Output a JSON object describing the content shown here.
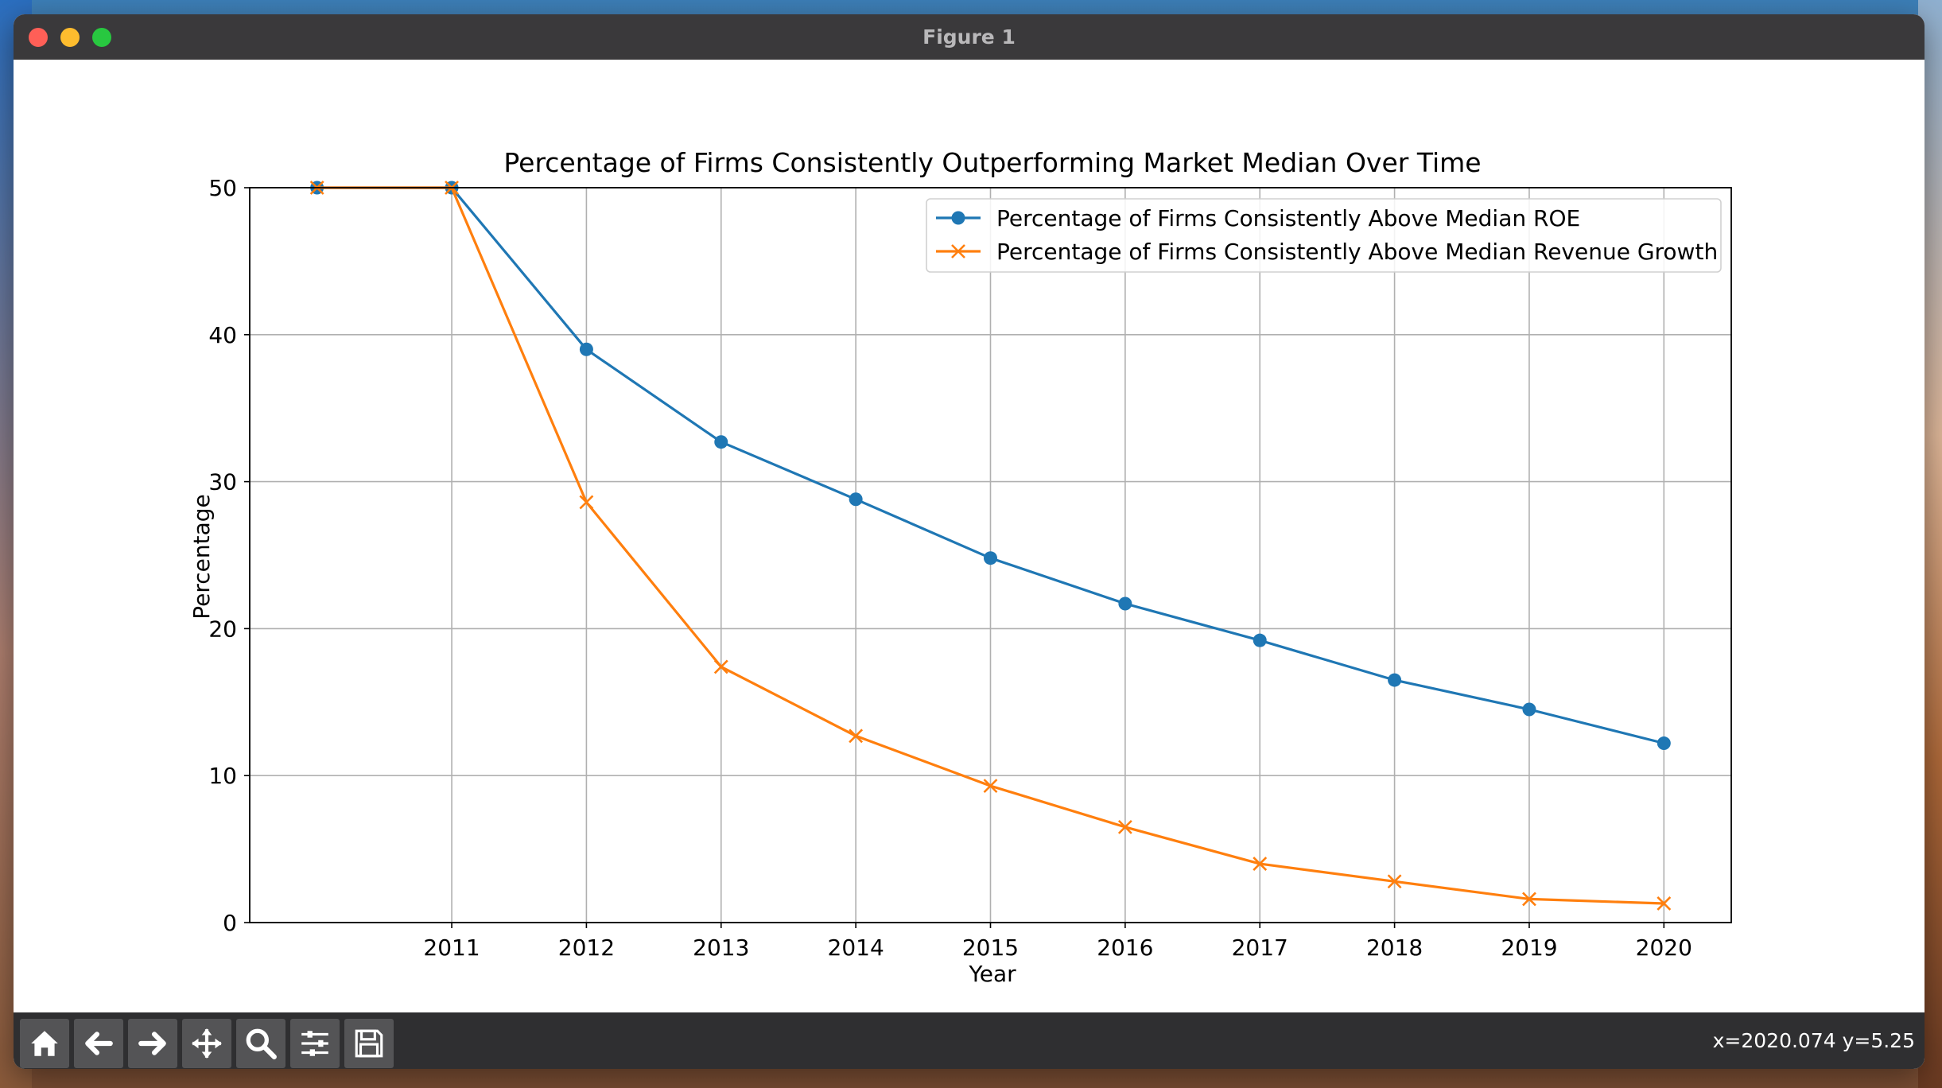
{
  "window": {
    "title": "Figure 1"
  },
  "chart_data": {
    "type": "line",
    "title": "Percentage of Firms Consistently Outperforming Market Median Over Time",
    "xlabel": "Year",
    "ylabel": "Percentage",
    "x": [
      2010,
      2011,
      2012,
      2013,
      2014,
      2015,
      2016,
      2017,
      2018,
      2019,
      2020
    ],
    "x_tick_labels": [
      "2011",
      "2012",
      "2013",
      "2014",
      "2015",
      "2016",
      "2017",
      "2018",
      "2019",
      "2020"
    ],
    "y_ticks": [
      0,
      10,
      20,
      30,
      40,
      50
    ],
    "xlim": [
      2009.5,
      2020.5
    ],
    "ylim": [
      0,
      50
    ],
    "grid": true,
    "legend_position": "top-right",
    "series": [
      {
        "name": "Percentage of Firms Consistently Above Median ROE",
        "color": "#1f77b4",
        "marker": "circle",
        "values": [
          50,
          50,
          39.0,
          32.7,
          28.8,
          24.8,
          21.7,
          19.2,
          16.5,
          14.5,
          12.2
        ]
      },
      {
        "name": "Percentage of Firms Consistently Above Median Revenue Growth",
        "color": "#ff7f0e",
        "marker": "x",
        "values": [
          50,
          50,
          28.6,
          17.4,
          12.7,
          9.3,
          6.5,
          4.0,
          2.8,
          1.6,
          1.3
        ]
      }
    ]
  },
  "toolbar": {
    "buttons": [
      {
        "name": "home",
        "icon": "home-icon"
      },
      {
        "name": "back",
        "icon": "arrow-left-icon"
      },
      {
        "name": "forward",
        "icon": "arrow-right-icon"
      },
      {
        "name": "pan",
        "icon": "move-icon"
      },
      {
        "name": "zoom",
        "icon": "magnifier-icon"
      },
      {
        "name": "configure",
        "icon": "sliders-icon"
      },
      {
        "name": "save",
        "icon": "floppy-icon"
      }
    ],
    "coordinates": "x=2020.074 y=5.25"
  }
}
